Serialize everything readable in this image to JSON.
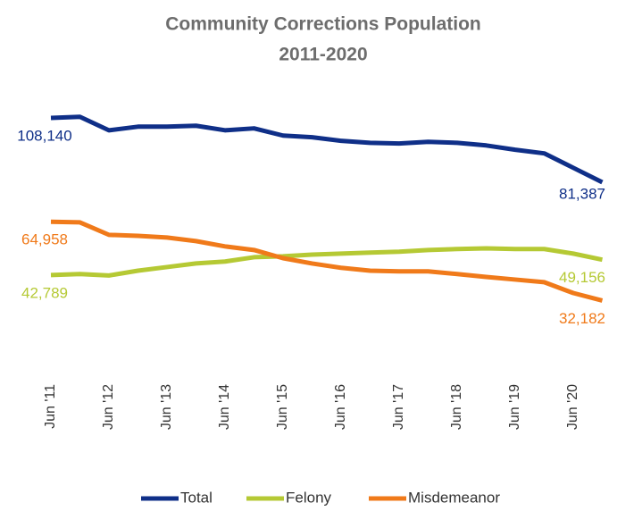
{
  "chart_data": {
    "type": "line",
    "title": [
      "Community Corrections Population",
      "2011-2020"
    ],
    "categories": [
      "Jun '11",
      null,
      "Jun '12",
      null,
      "Jun '13",
      null,
      "Jun '14",
      null,
      "Jun '15",
      null,
      "Jun '16",
      null,
      "Jun '17",
      null,
      "Jun '18",
      null,
      "Jun '19",
      null,
      "Jun '20",
      null
    ],
    "ylim": [
      0,
      110000
    ],
    "series": [
      {
        "name": "Total",
        "color": "#0f2f88",
        "values": [
          108140,
          108600,
          103000,
          104500,
          104500,
          104900,
          103000,
          103800,
          100800,
          100100,
          98600,
          97800,
          97500,
          98200,
          97800,
          96700,
          94900,
          93400,
          87400,
          81387
        ],
        "value_labels": [
          "108,140",
          null,
          null,
          null,
          null,
          null,
          null,
          null,
          null,
          null,
          null,
          null,
          null,
          null,
          null,
          null,
          null,
          null,
          null,
          "81,387"
        ]
      },
      {
        "name": "Felony",
        "color": "#b5c934",
        "values": [
          42789,
          43200,
          42600,
          44600,
          46100,
          47600,
          48400,
          50200,
          50600,
          51300,
          51700,
          52100,
          52500,
          53200,
          53600,
          53900,
          53600,
          53600,
          51700,
          49156
        ],
        "value_labels": [
          "42,789",
          null,
          null,
          null,
          null,
          null,
          null,
          null,
          null,
          null,
          null,
          null,
          null,
          null,
          null,
          null,
          null,
          null,
          null,
          "49,156"
        ]
      },
      {
        "name": "Misdemeanor",
        "color": "#f07a1a",
        "values": [
          64958,
          64700,
          59500,
          59100,
          58400,
          56900,
          54700,
          53200,
          49800,
          47600,
          45800,
          44600,
          44300,
          44300,
          43200,
          42000,
          40900,
          39800,
          35300,
          32182
        ],
        "value_labels": [
          "64,958",
          null,
          null,
          null,
          null,
          null,
          null,
          null,
          null,
          null,
          null,
          null,
          null,
          null,
          null,
          null,
          null,
          null,
          null,
          "32,182"
        ]
      }
    ],
    "legend": "bottom"
  }
}
